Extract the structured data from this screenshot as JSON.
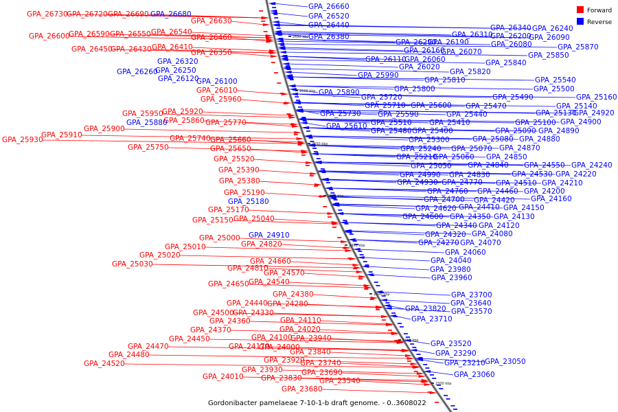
{
  "title": "Gordonibacter pamelaeae 7-10-1-b draft genome. - 0..3608022",
  "legend": [
    {
      "label": "Forward",
      "color": "#ff0000"
    },
    {
      "label": "Reverse",
      "color": "#0000ff"
    }
  ],
  "ticks": [
    "2650 kbp",
    "2600 kbp",
    "2550 kbp",
    "2500 kbp",
    "2450 kbp",
    "2400 kbp",
    "2350 kbp",
    "2300 kbp"
  ],
  "forward_labels": [
    "GPA_26730",
    "GPA_26720",
    "GPA_26690",
    "GPA_26630",
    "GPA_26600",
    "GPA_26590",
    "GPA_26550",
    "GPA_26540",
    "GPA_26460",
    "GPA_26450",
    "GPA_26430",
    "GPA_26410",
    "GPA_26350",
    "GPA_26010",
    "GPA_25960",
    "GPA_25950",
    "GPA_25920",
    "GPA_25860",
    "GPA_25770",
    "GPA_25900",
    "GPA_25910",
    "GPA_25930",
    "GPA_25740",
    "GPA_25660",
    "GPA_25750",
    "GPA_25650",
    "GPA_25520",
    "GPA_25390",
    "GPA_25380",
    "GPA_25190",
    "GPA_25170",
    "GPA_25150",
    "GPA_25040",
    "GPA_25000",
    "GPA_24820",
    "GPA_25010",
    "GPA_25020",
    "GPA_25030",
    "GPA_24810",
    "GPA_24660",
    "GPA_24570",
    "GPA_24650",
    "GPA_24540",
    "GPA_24380",
    "GPA_24440",
    "GPA_24280",
    "GPA_24500",
    "GPA_24330",
    "GPA_24360",
    "GPA_24370",
    "GPA_24110",
    "GPA_24020",
    "GPA_24450",
    "GPA_24100",
    "GPA_23940",
    "GPA_24470",
    "GPA_24170",
    "GPA_24000",
    "GPA_24480",
    "GPA_23840",
    "GPA_24520",
    "GPA_23920",
    "GPA_23740",
    "GPA_23930",
    "GPA_23690",
    "GPA_24010",
    "GPA_23830",
    "GPA_23540",
    "GPA_23680"
  ],
  "reverse_labels": [
    "GPA_26680",
    "GPA_26660",
    "GPA_26520",
    "GPA_26440",
    "GPA_26380",
    "GPA_26340",
    "GPA_26240",
    "GPA_26310",
    "GPA_26200",
    "GPA_26090",
    "GPA_26290",
    "GPA_26190",
    "GPA_26080",
    "GPA_25870",
    "GPA_26160",
    "GPA_26070",
    "GPA_25850",
    "GPA_26110",
    "GPA_26060",
    "GPA_25840",
    "GPA_26320",
    "GPA_26020",
    "GPA_25820",
    "GPA_26260",
    "GPA_26250",
    "GPA_25990",
    "GPA_26120",
    "GPA_25810",
    "GPA_26100",
    "GPA_25540",
    "GPA_25800",
    "GPA_25500",
    "GPA_25890",
    "GPA_25720",
    "GPA_25490",
    "GPA_25160",
    "GPA_25710",
    "GPA_25600",
    "GPA_25470",
    "GPA_25140",
    "GPA_25730",
    "GPA_25590",
    "GPA_25440",
    "GPA_25130",
    "GPA_24920",
    "GPA_25510",
    "GPA_25410",
    "GPA_25100",
    "GPA_24900",
    "GPA_25880",
    "GPA_25610",
    "GPA_25480",
    "GPA_25400",
    "GPA_25090",
    "GPA_24890",
    "GPA_25300",
    "GPA_25080",
    "GPA_24880",
    "GPA_25240",
    "GPA_25070",
    "GPA_24870",
    "GPA_25210",
    "GPA_25060",
    "GPA_24850",
    "GPA_25050",
    "GPA_24840",
    "GPA_24550",
    "GPA_24240",
    "GPA_24990",
    "GPA_24830",
    "GPA_24530",
    "GPA_24220",
    "GPA_24930",
    "GPA_24770",
    "GPA_24510",
    "GPA_24210",
    "GPA_24760",
    "GPA_24460",
    "GPA_24200",
    "GPA_24700",
    "GPA_24420",
    "GPA_24160",
    "GPA_24620",
    "GPA_24410",
    "GPA_24150",
    "GPA_24600",
    "GPA_24350",
    "GPA_24130",
    "GPA_24340",
    "GPA_24120",
    "GPA_25180",
    "GPA_24320",
    "GPA_24080",
    "GPA_24910",
    "GPA_24270",
    "GPA_24070",
    "GPA_24060",
    "GPA_24040",
    "GPA_23980",
    "GPA_23960",
    "GPA_23700",
    "GPA_23640",
    "GPA_23820",
    "GPA_23570",
    "GPA_23710",
    "GPA_23520",
    "GPA_23290",
    "GPA_23210",
    "GPA_23050",
    "GPA_23060"
  ]
}
